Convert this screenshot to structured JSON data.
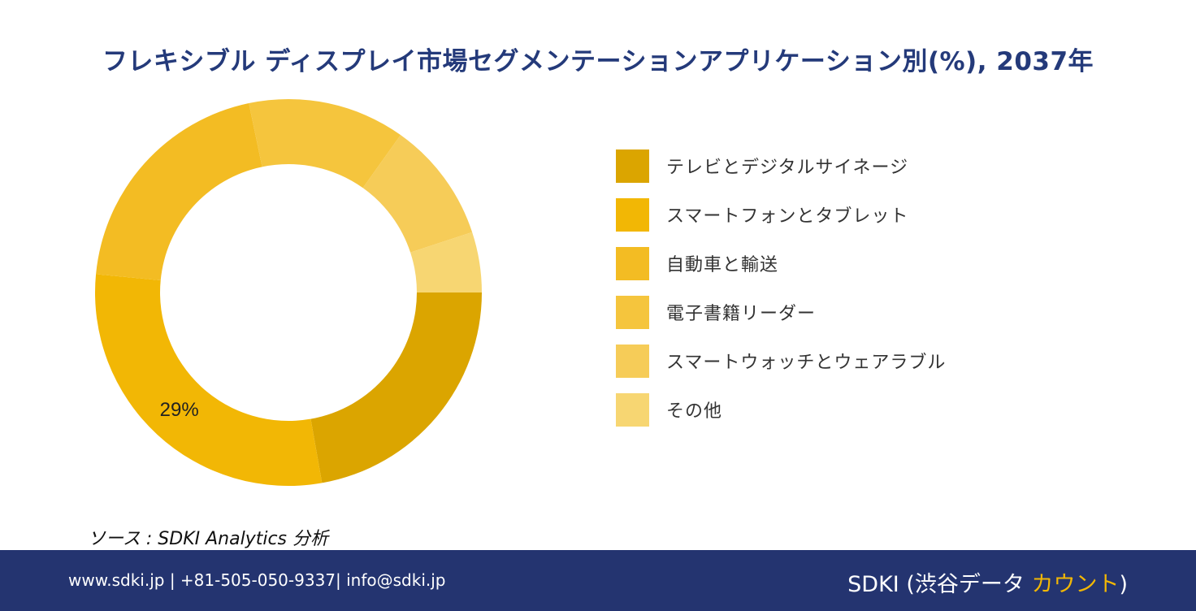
{
  "title": "フレキシブル ディスプレイ市場セグメンテーションアプリケーション別(%), 2037年",
  "chart_data": {
    "type": "pie",
    "subtype": "donut",
    "title": "フレキシブル ディスプレイ市場セグメンテーションアプリケーション別(%), 2037年",
    "categories": [
      "テレビとデジタルサイネージ",
      "スマートフォンとタブレット",
      "自動車と輸送",
      "電子書籍リーダー",
      "スマートウォッチとウェアラブル",
      "その他"
    ],
    "values": [
      22,
      29,
      20,
      13,
      10,
      5
    ],
    "colors": [
      "#dba500",
      "#f2b705",
      "#f3bc23",
      "#f5c53d",
      "#f6cc58",
      "#f7d672"
    ],
    "data_labels": [
      "",
      "29%",
      "",
      "",
      "",
      ""
    ],
    "legend_position": "right"
  },
  "source": "ソース : SDKI Analytics 分析",
  "footer": {
    "contact": "www.sdki.jp | +81-505-050-9337| info@sdki.jp",
    "brand_main": "SDKI (渋谷データ ",
    "brand_accent": "カウント",
    "brand_close": ")"
  }
}
